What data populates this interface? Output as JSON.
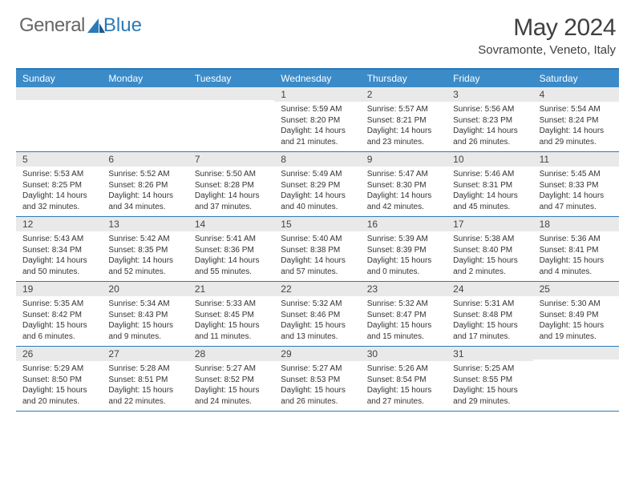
{
  "logo": {
    "text1": "General",
    "text2": "Blue"
  },
  "title": "May 2024",
  "location": "Sovramonte, Veneto, Italy",
  "header_color": "#3b8bc9",
  "border_color": "#2a7ab8",
  "stripe_color": "#e9e9e9",
  "weekdays": [
    "Sunday",
    "Monday",
    "Tuesday",
    "Wednesday",
    "Thursday",
    "Friday",
    "Saturday"
  ],
  "weeks": [
    [
      {
        "n": "",
        "sr": "",
        "ss": "",
        "dl1": "",
        "dl2": ""
      },
      {
        "n": "",
        "sr": "",
        "ss": "",
        "dl1": "",
        "dl2": ""
      },
      {
        "n": "",
        "sr": "",
        "ss": "",
        "dl1": "",
        "dl2": ""
      },
      {
        "n": "1",
        "sr": "Sunrise: 5:59 AM",
        "ss": "Sunset: 8:20 PM",
        "dl1": "Daylight: 14 hours",
        "dl2": "and 21 minutes."
      },
      {
        "n": "2",
        "sr": "Sunrise: 5:57 AM",
        "ss": "Sunset: 8:21 PM",
        "dl1": "Daylight: 14 hours",
        "dl2": "and 23 minutes."
      },
      {
        "n": "3",
        "sr": "Sunrise: 5:56 AM",
        "ss": "Sunset: 8:23 PM",
        "dl1": "Daylight: 14 hours",
        "dl2": "and 26 minutes."
      },
      {
        "n": "4",
        "sr": "Sunrise: 5:54 AM",
        "ss": "Sunset: 8:24 PM",
        "dl1": "Daylight: 14 hours",
        "dl2": "and 29 minutes."
      }
    ],
    [
      {
        "n": "5",
        "sr": "Sunrise: 5:53 AM",
        "ss": "Sunset: 8:25 PM",
        "dl1": "Daylight: 14 hours",
        "dl2": "and 32 minutes."
      },
      {
        "n": "6",
        "sr": "Sunrise: 5:52 AM",
        "ss": "Sunset: 8:26 PM",
        "dl1": "Daylight: 14 hours",
        "dl2": "and 34 minutes."
      },
      {
        "n": "7",
        "sr": "Sunrise: 5:50 AM",
        "ss": "Sunset: 8:28 PM",
        "dl1": "Daylight: 14 hours",
        "dl2": "and 37 minutes."
      },
      {
        "n": "8",
        "sr": "Sunrise: 5:49 AM",
        "ss": "Sunset: 8:29 PM",
        "dl1": "Daylight: 14 hours",
        "dl2": "and 40 minutes."
      },
      {
        "n": "9",
        "sr": "Sunrise: 5:47 AM",
        "ss": "Sunset: 8:30 PM",
        "dl1": "Daylight: 14 hours",
        "dl2": "and 42 minutes."
      },
      {
        "n": "10",
        "sr": "Sunrise: 5:46 AM",
        "ss": "Sunset: 8:31 PM",
        "dl1": "Daylight: 14 hours",
        "dl2": "and 45 minutes."
      },
      {
        "n": "11",
        "sr": "Sunrise: 5:45 AM",
        "ss": "Sunset: 8:33 PM",
        "dl1": "Daylight: 14 hours",
        "dl2": "and 47 minutes."
      }
    ],
    [
      {
        "n": "12",
        "sr": "Sunrise: 5:43 AM",
        "ss": "Sunset: 8:34 PM",
        "dl1": "Daylight: 14 hours",
        "dl2": "and 50 minutes."
      },
      {
        "n": "13",
        "sr": "Sunrise: 5:42 AM",
        "ss": "Sunset: 8:35 PM",
        "dl1": "Daylight: 14 hours",
        "dl2": "and 52 minutes."
      },
      {
        "n": "14",
        "sr": "Sunrise: 5:41 AM",
        "ss": "Sunset: 8:36 PM",
        "dl1": "Daylight: 14 hours",
        "dl2": "and 55 minutes."
      },
      {
        "n": "15",
        "sr": "Sunrise: 5:40 AM",
        "ss": "Sunset: 8:38 PM",
        "dl1": "Daylight: 14 hours",
        "dl2": "and 57 minutes."
      },
      {
        "n": "16",
        "sr": "Sunrise: 5:39 AM",
        "ss": "Sunset: 8:39 PM",
        "dl1": "Daylight: 15 hours",
        "dl2": "and 0 minutes."
      },
      {
        "n": "17",
        "sr": "Sunrise: 5:38 AM",
        "ss": "Sunset: 8:40 PM",
        "dl1": "Daylight: 15 hours",
        "dl2": "and 2 minutes."
      },
      {
        "n": "18",
        "sr": "Sunrise: 5:36 AM",
        "ss": "Sunset: 8:41 PM",
        "dl1": "Daylight: 15 hours",
        "dl2": "and 4 minutes."
      }
    ],
    [
      {
        "n": "19",
        "sr": "Sunrise: 5:35 AM",
        "ss": "Sunset: 8:42 PM",
        "dl1": "Daylight: 15 hours",
        "dl2": "and 6 minutes."
      },
      {
        "n": "20",
        "sr": "Sunrise: 5:34 AM",
        "ss": "Sunset: 8:43 PM",
        "dl1": "Daylight: 15 hours",
        "dl2": "and 9 minutes."
      },
      {
        "n": "21",
        "sr": "Sunrise: 5:33 AM",
        "ss": "Sunset: 8:45 PM",
        "dl1": "Daylight: 15 hours",
        "dl2": "and 11 minutes."
      },
      {
        "n": "22",
        "sr": "Sunrise: 5:32 AM",
        "ss": "Sunset: 8:46 PM",
        "dl1": "Daylight: 15 hours",
        "dl2": "and 13 minutes."
      },
      {
        "n": "23",
        "sr": "Sunrise: 5:32 AM",
        "ss": "Sunset: 8:47 PM",
        "dl1": "Daylight: 15 hours",
        "dl2": "and 15 minutes."
      },
      {
        "n": "24",
        "sr": "Sunrise: 5:31 AM",
        "ss": "Sunset: 8:48 PM",
        "dl1": "Daylight: 15 hours",
        "dl2": "and 17 minutes."
      },
      {
        "n": "25",
        "sr": "Sunrise: 5:30 AM",
        "ss": "Sunset: 8:49 PM",
        "dl1": "Daylight: 15 hours",
        "dl2": "and 19 minutes."
      }
    ],
    [
      {
        "n": "26",
        "sr": "Sunrise: 5:29 AM",
        "ss": "Sunset: 8:50 PM",
        "dl1": "Daylight: 15 hours",
        "dl2": "and 20 minutes."
      },
      {
        "n": "27",
        "sr": "Sunrise: 5:28 AM",
        "ss": "Sunset: 8:51 PM",
        "dl1": "Daylight: 15 hours",
        "dl2": "and 22 minutes."
      },
      {
        "n": "28",
        "sr": "Sunrise: 5:27 AM",
        "ss": "Sunset: 8:52 PM",
        "dl1": "Daylight: 15 hours",
        "dl2": "and 24 minutes."
      },
      {
        "n": "29",
        "sr": "Sunrise: 5:27 AM",
        "ss": "Sunset: 8:53 PM",
        "dl1": "Daylight: 15 hours",
        "dl2": "and 26 minutes."
      },
      {
        "n": "30",
        "sr": "Sunrise: 5:26 AM",
        "ss": "Sunset: 8:54 PM",
        "dl1": "Daylight: 15 hours",
        "dl2": "and 27 minutes."
      },
      {
        "n": "31",
        "sr": "Sunrise: 5:25 AM",
        "ss": "Sunset: 8:55 PM",
        "dl1": "Daylight: 15 hours",
        "dl2": "and 29 minutes."
      },
      {
        "n": "",
        "sr": "",
        "ss": "",
        "dl1": "",
        "dl2": ""
      }
    ]
  ]
}
